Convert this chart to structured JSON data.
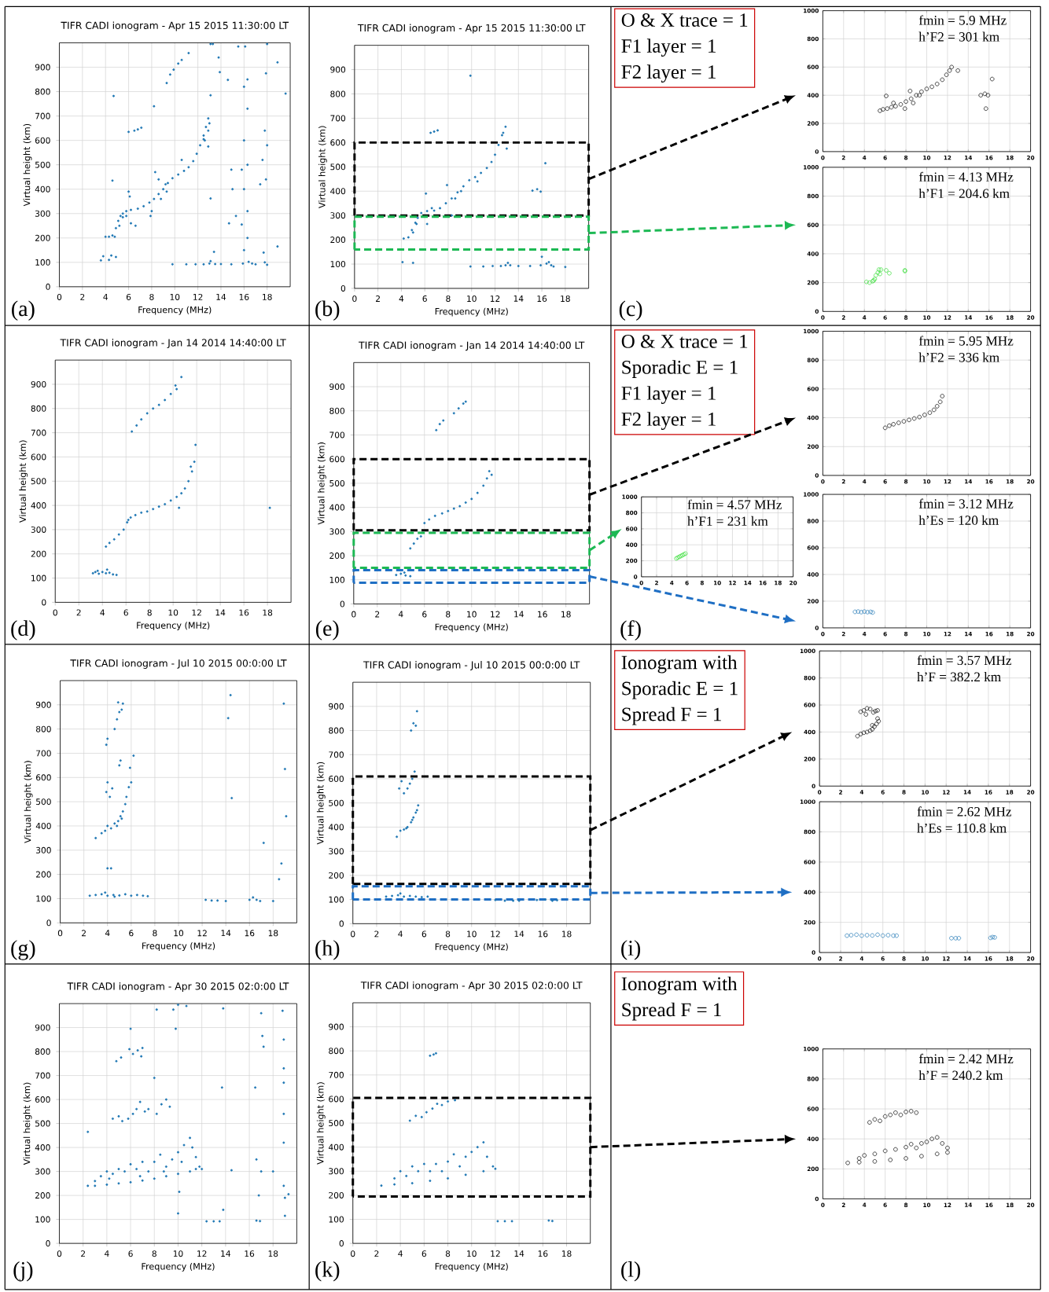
{
  "chart_data": [
    {
      "type": "scatter",
      "title": "TIFR CADI ionogram - Apr 15 2015 11:30:00 LT",
      "xlabel": "Frequency (MHz)",
      "ylabel": "Virtual height (km)",
      "xlim": [
        0,
        20
      ],
      "ylim": [
        0,
        1000
      ],
      "xticks": [
        0,
        2,
        4,
        6,
        8,
        10,
        12,
        14,
        16,
        18
      ],
      "yticks": [
        0,
        100,
        200,
        300,
        400,
        500,
        600,
        700,
        800,
        900
      ],
      "grid": true,
      "marker": "circle",
      "annotations": [
        "(a)"
      ],
      "series": [
        {
          "color": "#1f77b4",
          "x": [
            4.0,
            4.3,
            4.6,
            4.9,
            5.1,
            5.3,
            5.5,
            5.8,
            6.2,
            6.8,
            7.3,
            7.8,
            8.2,
            8.6,
            9.0,
            9.4,
            9.8,
            10.3,
            10.8,
            11.2,
            11.6,
            11.9,
            12.2,
            12.5,
            12.7,
            12.9,
            4.8,
            5.2,
            5.5,
            5.8,
            8.8,
            9.3,
            12.6,
            12.9,
            13.0,
            6.0,
            6.1,
            6.2,
            6.6,
            7.9,
            8.0,
            8.3,
            8.6,
            9.2,
            10.6,
            6.5,
            6.8,
            7.1,
            6.0,
            9.3,
            9.6,
            9.9,
            10.3,
            10.6,
            11.2,
            4.7,
            8.2,
            4.6,
            3.6,
            3.8,
            4.3,
            4.5,
            4.9,
            9.8,
            11.0,
            11.8,
            12.5,
            13.0,
            13.1,
            13.5,
            14.0,
            14.9,
            15.9,
            16.4,
            16.7,
            17.0,
            17.8,
            18.0,
            16.0,
            16.0,
            16.0,
            16.0,
            16.1,
            16.3,
            16.3,
            16.3,
            16.3,
            16.3,
            15.8,
            15.5,
            15.0,
            14.9,
            14.7,
            15.3,
            15.8,
            17.4,
            17.6,
            17.8,
            17.9,
            18.0,
            17.9,
            17.7,
            18.9,
            18.9,
            19.6,
            18.0,
            13.9,
            14.6,
            13.8,
            13.1,
            13.3,
            12.5,
            12.9,
            13.1,
            13.1,
            13.4
          ],
          "values": [
            205,
            205,
            210,
            240,
            270,
            290,
            300,
            310,
            315,
            320,
            330,
            345,
            360,
            380,
            400,
            425,
            445,
            460,
            475,
            490,
            515,
            545,
            580,
            620,
            655,
            690,
            205,
            250,
            285,
            290,
            360,
            390,
            600,
            640,
            670,
            390,
            370,
            260,
            250,
            290,
            310,
            470,
            440,
            420,
            520,
            640,
            645,
            652,
            635,
            835,
            870,
            890,
            915,
            930,
            958,
            782,
            740,
            435,
            108,
            125,
            110,
            128,
            122,
            92,
            92,
            92,
            92,
            95,
            105,
            93,
            93,
            92,
            95,
            102,
            95,
            92,
            100,
            90,
            150,
            400,
            600,
            820,
            985,
            850,
            730,
            500,
            310,
            200,
            255,
            985,
            400,
            480,
            260,
            290,
            480,
            420,
            520,
            640,
            875,
            580,
            440,
            140,
            920,
            165,
            792,
            995,
            880,
            848,
            940,
            995,
            995,
            605,
            575,
            785,
            362,
            143
          ]
        }
      ]
    },
    {
      "type": "scatter",
      "title": "TIFR CADI ionogram - Apr 15 2015 11:30:00 LT",
      "xlabel": "Frequency (MHz)",
      "ylabel": "Virtual height (km)",
      "xlim": [
        0,
        20
      ],
      "ylim": [
        0,
        1000
      ],
      "xticks": [
        0,
        2,
        4,
        6,
        8,
        10,
        12,
        14,
        16,
        18
      ],
      "yticks": [
        0,
        100,
        200,
        300,
        400,
        500,
        600,
        700,
        800,
        900
      ],
      "grid": true,
      "marker": "circle",
      "annotations": [
        "(b)"
      ],
      "series": [
        {
          "color": "#1f77b4",
          "x": [
            4.2,
            4.6,
            4.9,
            5.2,
            5.4,
            5.7,
            6.2,
            6.8,
            7.3,
            7.8,
            8.3,
            8.8,
            9.3,
            9.8,
            10.3,
            10.8,
            11.3,
            11.7,
            12.0,
            12.3,
            12.6,
            12.9,
            5.0,
            5.3,
            8.6,
            9.1,
            12.7,
            6.1,
            6.2,
            6.6,
            7.9,
            8.3,
            10.5,
            13.0,
            15.2,
            15.6,
            15.9,
            16.3,
            9.9,
            6.5,
            6.8,
            7.1,
            4.1,
            5.0,
            9.9,
            11.0,
            11.8,
            12.5,
            12.9,
            13.1,
            13.3,
            14.0,
            15.0,
            15.9,
            16.0,
            16.4,
            16.6,
            16.8,
            17.0,
            18.0
          ],
          "values": [
            205,
            210,
            240,
            270,
            290,
            310,
            318,
            320,
            330,
            350,
            370,
            395,
            420,
            445,
            458,
            475,
            495,
            520,
            550,
            590,
            630,
            665,
            230,
            265,
            370,
            400,
            640,
            390,
            265,
            330,
            425,
            300,
            440,
            575,
            402,
            408,
            398,
            515,
            875,
            640,
            645,
            650,
            108,
            105,
            90,
            90,
            92,
            92,
            95,
            105,
            95,
            92,
            92,
            95,
            130,
            102,
            108,
            95,
            90,
            88
          ]
        }
      ]
    },
    {
      "type": "other",
      "annotations": [
        "O & X trace = 1",
        "F1 layer = 1",
        "F2 layer = 1",
        "(c)"
      ]
    },
    {
      "type": "scatter",
      "xlim": [
        0,
        20
      ],
      "ylim": [
        0,
        1000
      ],
      "xticks": [
        0,
        2,
        4,
        6,
        8,
        10,
        12,
        14,
        16,
        18,
        20
      ],
      "yticks": [
        0,
        200,
        400,
        600,
        800,
        1000
      ],
      "grid": true,
      "marker": "circle",
      "annotations": [
        "fmin = 5.9 MHz",
        "h’F2 = 301 km"
      ],
      "series": [
        {
          "color": "#000000",
          "x": [
            5.5,
            5.8,
            6.2,
            6.6,
            7.0,
            7.5,
            8.0,
            8.5,
            9.0,
            9.5,
            10.0,
            10.5,
            11.0,
            11.5,
            11.9,
            12.2,
            12.4,
            6.1,
            6.8,
            7.9,
            8.4,
            8.7,
            9.3,
            13.0,
            15.2,
            15.6,
            15.9,
            15.7,
            16.3
          ],
          "values": [
            290,
            300,
            305,
            315,
            322,
            335,
            355,
            375,
            400,
            425,
            445,
            460,
            480,
            510,
            545,
            575,
            600,
            395,
            345,
            305,
            430,
            345,
            400,
            575,
            400,
            410,
            400,
            305,
            515
          ]
        }
      ]
    },
    {
      "type": "scatter",
      "xlim": [
        0,
        20
      ],
      "ylim": [
        0,
        1000
      ],
      "xticks": [
        0,
        2,
        4,
        6,
        8,
        10,
        12,
        14,
        16,
        18,
        20
      ],
      "yticks": [
        0,
        200,
        400,
        600,
        800,
        1000
      ],
      "grid": true,
      "marker": "circle",
      "annotations": [
        "fmin = 4.13 MHz",
        "h’F1 = 204.6 km"
      ],
      "series": [
        {
          "color": "#33dd33",
          "x": [
            4.2,
            4.5,
            4.8,
            5.0,
            5.1,
            5.3,
            5.4,
            5.6,
            5.5,
            4.9,
            6.1,
            6.4,
            7.9,
            7.9
          ],
          "values": [
            205,
            200,
            210,
            225,
            250,
            270,
            290,
            290,
            260,
            215,
            285,
            265,
            285,
            280
          ]
        }
      ]
    },
    {
      "type": "scatter",
      "title": "TIFR CADI ionogram - Jan 14 2014 14:40:00 LT",
      "xlabel": "Frequency (MHz)",
      "ylabel": "Virtual height (km)",
      "xlim": [
        0,
        20
      ],
      "ylim": [
        0,
        1000
      ],
      "xticks": [
        0,
        2,
        4,
        6,
        8,
        10,
        12,
        14,
        16,
        18
      ],
      "yticks": [
        0,
        100,
        200,
        300,
        400,
        500,
        600,
        700,
        800,
        900
      ],
      "grid": true,
      "marker": "circle",
      "annotations": [
        "(d)"
      ],
      "series": [
        {
          "color": "#1f77b4",
          "x": [
            3.2,
            3.4,
            3.7,
            4.0,
            4.3,
            4.6,
            4.9,
            5.2,
            4.4,
            3.6,
            4.3,
            4.6,
            5.0,
            5.4,
            5.8,
            6.1,
            6.4,
            6.8,
            7.3,
            7.8,
            8.3,
            8.8,
            9.3,
            9.8,
            10.3,
            10.7,
            11.0,
            11.3,
            11.6,
            11.8,
            11.9,
            11.5,
            10.5,
            6.2,
            6.5,
            6.9,
            7.3,
            7.8,
            8.3,
            8.8,
            9.3,
            9.8,
            10.3,
            10.7,
            10.2,
            18.2
          ],
          "values": [
            120,
            125,
            118,
            125,
            120,
            122,
            115,
            113,
            135,
            130,
            230,
            245,
            260,
            280,
            300,
            330,
            350,
            360,
            370,
            375,
            385,
            395,
            405,
            420,
            435,
            450,
            470,
            500,
            540,
            580,
            650,
            560,
            390,
            340,
            705,
            730,
            755,
            780,
            800,
            815,
            835,
            860,
            880,
            930,
            895,
            390
          ]
        }
      ]
    },
    {
      "type": "scatter",
      "title": "TIFR CADI ionogram - Jan 14 2014 14:40:00 LT",
      "xlabel": "Frequency (MHz)",
      "ylabel": "Virtual height (km)",
      "xlim": [
        0,
        20
      ],
      "ylim": [
        0,
        1000
      ],
      "xticks": [
        0,
        2,
        4,
        6,
        8,
        10,
        12,
        14,
        16,
        18
      ],
      "yticks": [
        0,
        100,
        200,
        300,
        400,
        500,
        600,
        700,
        800,
        900
      ],
      "grid": true,
      "marker": "circle",
      "annotations": [
        "(e)"
      ],
      "series": [
        {
          "color": "#1f77b4",
          "x": [
            3.6,
            4.0,
            4.4,
            4.8,
            4.3,
            4.8,
            5.1,
            5.4,
            5.7,
            6.0,
            6.4,
            6.9,
            7.5,
            8.0,
            8.5,
            9.0,
            9.5,
            10.0,
            10.5,
            11.0,
            11.3,
            11.5,
            11.7,
            7.0,
            7.3,
            7.6,
            8.5,
            8.9,
            9.3,
            9.5
          ],
          "values": [
            120,
            125,
            118,
            115,
            130,
            230,
            250,
            270,
            280,
            335,
            350,
            365,
            375,
            385,
            395,
            405,
            420,
            435,
            460,
            490,
            520,
            550,
            535,
            720,
            745,
            760,
            790,
            810,
            830,
            838
          ]
        }
      ]
    },
    {
      "type": "other",
      "annotations": [
        "O & X trace = 1",
        "Sporadic E = 1",
        "F1 layer = 1",
        "F2 layer = 1",
        "(f)"
      ]
    },
    {
      "type": "scatter",
      "xlim": [
        0,
        20
      ],
      "ylim": [
        0,
        1000
      ],
      "xticks": [
        0,
        2,
        4,
        6,
        8,
        10,
        12,
        14,
        16,
        18,
        20
      ],
      "yticks": [
        0,
        200,
        400,
        600,
        800,
        1000
      ],
      "grid": true,
      "marker": "circle",
      "annotations": [
        "fmin = 5.95 MHz",
        "h’F2 = 336 km"
      ],
      "series": [
        {
          "color": "#000000",
          "x": [
            6.0,
            6.4,
            6.8,
            7.3,
            7.8,
            8.3,
            8.8,
            9.3,
            9.8,
            10.3,
            10.7,
            11.0,
            11.3,
            11.5
          ],
          "values": [
            330,
            345,
            355,
            365,
            375,
            385,
            395,
            405,
            420,
            435,
            455,
            480,
            510,
            550
          ]
        }
      ]
    },
    {
      "type": "scatter",
      "xlim": [
        0,
        20
      ],
      "ylim": [
        0,
        1000
      ],
      "xticks": [
        0,
        2,
        4,
        6,
        8,
        10,
        12,
        14,
        16,
        18,
        20
      ],
      "yticks": [
        0,
        200,
        400,
        600,
        800,
        1000
      ],
      "grid": true,
      "marker": "circle",
      "annotations": [
        "fmin = 4.57 MHz",
        "h’F1 = 231 km"
      ],
      "series": [
        {
          "color": "#33dd33",
          "x": [
            4.6,
            4.8,
            5.0,
            5.2,
            5.4,
            5.6,
            5.8
          ],
          "values": [
            230,
            240,
            250,
            260,
            270,
            280,
            290
          ]
        }
      ]
    },
    {
      "type": "scatter",
      "xlim": [
        0,
        20
      ],
      "ylim": [
        0,
        1000
      ],
      "xticks": [
        0,
        2,
        4,
        6,
        8,
        10,
        12,
        14,
        16,
        18,
        20
      ],
      "yticks": [
        0,
        200,
        400,
        600,
        800,
        1000
      ],
      "grid": true,
      "marker": "circle",
      "annotations": [
        "fmin = 3.12 MHz",
        "h’Es = 120 km"
      ],
      "series": [
        {
          "color": "#1f77b4",
          "x": [
            3.1,
            3.4,
            3.7,
            4.0,
            4.3,
            4.6,
            4.8
          ],
          "values": [
            120,
            122,
            118,
            122,
            118,
            120,
            115
          ]
        }
      ]
    },
    {
      "type": "scatter",
      "title": "TIFR CADI ionogram - Jul 10 2015 00:0:00 LT",
      "xlabel": "Frequency (MHz)",
      "ylabel": "Virtual height (km)",
      "xlim": [
        0,
        20
      ],
      "ylim": [
        0,
        1000
      ],
      "xticks": [
        0,
        2,
        4,
        6,
        8,
        10,
        12,
        14,
        16,
        18
      ],
      "yticks": [
        0,
        100,
        200,
        300,
        400,
        500,
        600,
        700,
        800,
        900
      ],
      "grid": true,
      "marker": "circle",
      "annotations": [
        "(g)"
      ],
      "series": [
        {
          "color": "#1f77b4",
          "x": [
            2.5,
            3.0,
            3.5,
            4.0,
            4.5,
            5.0,
            5.5,
            6.0,
            6.5,
            7.0,
            7.4,
            3.8,
            4.6,
            3.0,
            3.5,
            3.8,
            4.0,
            4.3,
            4.6,
            4.9,
            5.1,
            5.3,
            5.5,
            5.6,
            5.2,
            4.8,
            5.8,
            6.0,
            6.2,
            5.9,
            5.0,
            5.1,
            3.9,
            4.0,
            4.2,
            4.4,
            3.9,
            4.0,
            4.6,
            4.8,
            5.0,
            5.2,
            4.9,
            5.3,
            4.0,
            4.3,
            12.3,
            12.8,
            13.3,
            14.0,
            16.0,
            16.3,
            16.6,
            16.9,
            18.0,
            14.4,
            14.2,
            14.5,
            17.2,
            18.9,
            19.0,
            19.1,
            18.7,
            18.5
          ],
          "values": [
            112,
            115,
            118,
            112,
            115,
            113,
            118,
            112,
            115,
            112,
            110,
            125,
            108,
            350,
            370,
            380,
            400,
            390,
            410,
            420,
            440,
            460,
            490,
            520,
            430,
            400,
            560,
            580,
            690,
            640,
            650,
            670,
            540,
            580,
            520,
            555,
            735,
            760,
            800,
            840,
            870,
            880,
            910,
            905,
            225,
            225,
            95,
            92,
            92,
            90,
            95,
            105,
            95,
            90,
            90,
            940,
            845,
            515,
            330,
            905,
            635,
            440,
            245,
            180
          ]
        }
      ]
    },
    {
      "type": "scatter",
      "title": "TIFR CADI ionogram - Jul 10 2015 00:0:00 LT",
      "xlabel": "Frequency (MHz)",
      "ylabel": "Virtual height (km)",
      "xlim": [
        0,
        20
      ],
      "ylim": [
        0,
        1000
      ],
      "xticks": [
        0,
        2,
        4,
        6,
        8,
        10,
        12,
        14,
        16,
        18
      ],
      "yticks": [
        0,
        100,
        200,
        300,
        400,
        500,
        600,
        700,
        800,
        900
      ],
      "grid": true,
      "marker": "circle",
      "annotations": [
        "(h)"
      ],
      "series": [
        {
          "color": "#1f77b4",
          "x": [
            2.8,
            3.3,
            3.8,
            4.3,
            4.8,
            5.3,
            5.8,
            6.3,
            4.0,
            12.0,
            12.8,
            13.5,
            14.0,
            15.5,
            16.2,
            16.8,
            17.2,
            3.7,
            4.0,
            4.3,
            4.6,
            4.9,
            5.1,
            5.3,
            5.5,
            5.4,
            5.0,
            4.5,
            3.9,
            4.1,
            4.3,
            4.6,
            5.0,
            5.2,
            4.8,
            4.9,
            5.1,
            5.3,
            5.4
          ],
          "values": [
            112,
            115,
            118,
            112,
            115,
            112,
            110,
            112,
            125,
            98,
            95,
            95,
            95,
            98,
            100,
            95,
            97,
            360,
            385,
            390,
            400,
            420,
            440,
            460,
            490,
            470,
            430,
            395,
            560,
            590,
            540,
            560,
            600,
            630,
            580,
            800,
            830,
            820,
            880
          ]
        }
      ]
    },
    {
      "type": "other",
      "annotations": [
        "Ionogram with",
        "Sporadic E = 1",
        "Spread F = 1",
        "(i)"
      ]
    },
    {
      "type": "scatter",
      "xlim": [
        0,
        20
      ],
      "ylim": [
        0,
        1000
      ],
      "xticks": [
        0,
        2,
        4,
        6,
        8,
        10,
        12,
        14,
        16,
        18,
        20
      ],
      "yticks": [
        0,
        200,
        400,
        600,
        800,
        1000
      ],
      "grid": true,
      "marker": "circle",
      "annotations": [
        "fmin = 3.57 MHz",
        "h’F = 382.2 km"
      ],
      "series": [
        {
          "color": "#000000",
          "x": [
            3.6,
            3.9,
            4.2,
            4.5,
            4.8,
            5.0,
            5.2,
            5.4,
            5.6,
            5.5,
            5.0,
            3.9,
            4.2,
            4.5,
            4.8,
            5.1,
            5.3,
            5.5,
            4.4
          ],
          "values": [
            370,
            385,
            395,
            400,
            410,
            420,
            440,
            460,
            480,
            500,
            450,
            550,
            560,
            575,
            570,
            545,
            555,
            560,
            530
          ]
        }
      ]
    },
    {
      "type": "scatter",
      "xlim": [
        0,
        20
      ],
      "ylim": [
        0,
        1000
      ],
      "xticks": [
        0,
        2,
        4,
        6,
        8,
        10,
        12,
        14,
        16,
        18,
        20
      ],
      "yticks": [
        0,
        200,
        400,
        600,
        800,
        1000
      ],
      "grid": true,
      "marker": "circle",
      "annotations": [
        "fmin = 2.62 MHz",
        "h’Es = 110.8 km"
      ],
      "series": [
        {
          "color": "#1f77b4",
          "x": [
            2.6,
            3.0,
            3.5,
            4.0,
            4.5,
            5.0,
            5.5,
            6.0,
            6.5,
            7.0,
            7.3,
            12.5,
            12.9,
            13.2,
            16.2,
            16.4,
            16.6
          ],
          "values": [
            112,
            115,
            118,
            112,
            115,
            113,
            118,
            112,
            115,
            112,
            112,
            95,
            95,
            95,
            97,
            102,
            100
          ]
        }
      ]
    },
    {
      "type": "scatter",
      "title": "TIFR CADI ionogram - Apr 30 2015 02:0:00 LT",
      "xlabel": "Frequency (MHz)",
      "ylabel": "Virtual height (km)",
      "xlim": [
        0,
        20
      ],
      "ylim": [
        0,
        1000
      ],
      "xticks": [
        0,
        2,
        4,
        6,
        8,
        10,
        12,
        14,
        16,
        18
      ],
      "yticks": [
        0,
        100,
        200,
        300,
        400,
        500,
        600,
        700,
        800,
        900
      ],
      "grid": true,
      "marker": "circle",
      "annotations": [
        "(j)"
      ],
      "series": [
        {
          "color": "#1f77b4",
          "x": [
            2.4,
            3.0,
            4.0,
            5.0,
            6.0,
            7.0,
            8.0,
            9.0,
            10.0,
            11.0,
            11.5,
            3.0,
            3.5,
            4.0,
            4.5,
            5.0,
            5.5,
            6.0,
            6.5,
            7.0,
            7.5,
            8.0,
            8.5,
            9.0,
            9.5,
            10.0,
            10.5,
            11.0,
            11.2,
            11.5,
            11.8,
            12.0,
            4.2,
            6.8,
            8.8,
            10.3,
            4.5,
            5.0,
            5.3,
            5.8,
            6.2,
            6.5,
            6.8,
            7.2,
            7.5,
            8.2,
            8.6,
            9.0,
            9.3,
            4.8,
            5.2,
            5.9,
            6.2,
            6.6,
            6.9,
            7.0,
            6.0,
            2.4,
            8.0,
            8.2,
            9.8,
            9.6,
            10.0,
            10.1,
            10.0,
            10.7,
            12.4,
            13.0,
            13.5,
            13.8,
            13.7,
            13.8,
            14.5,
            16.5,
            16.6,
            16.8,
            16.6,
            16.9,
            17.0,
            17.1,
            17.2,
            17.0,
            18.8,
            18.9,
            18.9,
            18.9,
            18.9,
            18.9,
            18.9,
            19.0,
            19.0,
            19.3,
            18.0
          ],
          "values": [
            240,
            240,
            245,
            250,
            255,
            262,
            270,
            280,
            290,
            300,
            310,
            260,
            280,
            300,
            290,
            310,
            300,
            330,
            310,
            340,
            300,
            340,
            370,
            320,
            350,
            380,
            410,
            440,
            400,
            360,
            320,
            310,
            270,
            280,
            300,
            340,
            520,
            530,
            510,
            520,
            540,
            560,
            590,
            550,
            560,
            540,
            580,
            600,
            570,
            760,
            775,
            810,
            790,
            805,
            780,
            815,
            895,
            465,
            690,
            975,
            895,
            975,
            995,
            215,
            125,
            990,
            92,
            92,
            92,
            980,
            650,
            140,
            305,
            650,
            350,
            200,
            95,
            93,
            960,
            865,
            820,
            300,
            970,
            850,
            730,
            670,
            540,
            420,
            240,
            115,
            190,
            205,
            300
          ]
        }
      ]
    },
    {
      "type": "scatter",
      "title": "TIFR CADI ionogram - Apr 30 2015 02:0:00 LT",
      "xlabel": "Frequency (MHz)",
      "ylabel": "Virtual height (km)",
      "xlim": [
        0,
        20
      ],
      "ylim": [
        0,
        1000
      ],
      "xticks": [
        0,
        2,
        4,
        6,
        8,
        10,
        12,
        14,
        16,
        18
      ],
      "yticks": [
        0,
        100,
        200,
        300,
        400,
        500,
        600,
        700,
        800,
        900
      ],
      "grid": true,
      "marker": "circle",
      "annotations": [
        "(k)"
      ],
      "series": [
        {
          "color": "#1f77b4",
          "x": [
            2.4,
            3.5,
            5.0,
            6.5,
            8.0,
            9.5,
            11.0,
            12.0,
            3.5,
            4.0,
            4.5,
            5.0,
            5.5,
            6.0,
            6.5,
            7.0,
            7.5,
            8.0,
            8.5,
            9.0,
            9.5,
            10.0,
            10.5,
            11.0,
            11.3,
            11.8,
            4.8,
            5.3,
            5.8,
            6.2,
            6.7,
            7.1,
            7.5,
            8.0,
            8.6,
            6.5,
            6.8,
            7.0,
            12.2,
            12.8,
            13.4,
            16.5,
            16.8
          ],
          "values": [
            240,
            245,
            250,
            260,
            270,
            285,
            300,
            310,
            270,
            300,
            280,
            320,
            300,
            330,
            300,
            330,
            300,
            340,
            370,
            320,
            360,
            380,
            400,
            420,
            360,
            320,
            510,
            530,
            525,
            545,
            560,
            580,
            575,
            590,
            595,
            780,
            785,
            790,
            92,
            92,
            92,
            95,
            93
          ]
        }
      ]
    },
    {
      "type": "other",
      "annotations": [
        "Ionogram with",
        "Spread F = 1",
        "(l)"
      ]
    },
    {
      "type": "scatter",
      "xlim": [
        0,
        20
      ],
      "ylim": [
        0,
        1000
      ],
      "xticks": [
        0,
        2,
        4,
        6,
        8,
        10,
        12,
        14,
        16,
        18,
        20
      ],
      "yticks": [
        0,
        200,
        400,
        600,
        800,
        1000
      ],
      "grid": true,
      "marker": "circle",
      "annotations": [
        "fmin = 2.42 MHz",
        "h’F = 240.2 km"
      ],
      "series": [
        {
          "color": "#000000",
          "x": [
            2.4,
            3.5,
            5.0,
            6.5,
            8.0,
            9.5,
            11.0,
            12.0,
            3.5,
            4.0,
            5.0,
            6.0,
            7.0,
            8.0,
            8.5,
            9.0,
            9.5,
            10.0,
            10.5,
            11.0,
            11.5,
            12.0,
            4.5,
            5.0,
            5.5,
            6.0,
            6.5,
            7.0,
            7.5,
            8.0,
            8.5,
            9.0
          ],
          "values": [
            240,
            245,
            250,
            260,
            270,
            285,
            300,
            310,
            270,
            290,
            300,
            320,
            330,
            345,
            365,
            340,
            370,
            380,
            400,
            410,
            370,
            340,
            510,
            530,
            520,
            550,
            560,
            575,
            560,
            580,
            585,
            575
          ]
        }
      ]
    }
  ]
}
